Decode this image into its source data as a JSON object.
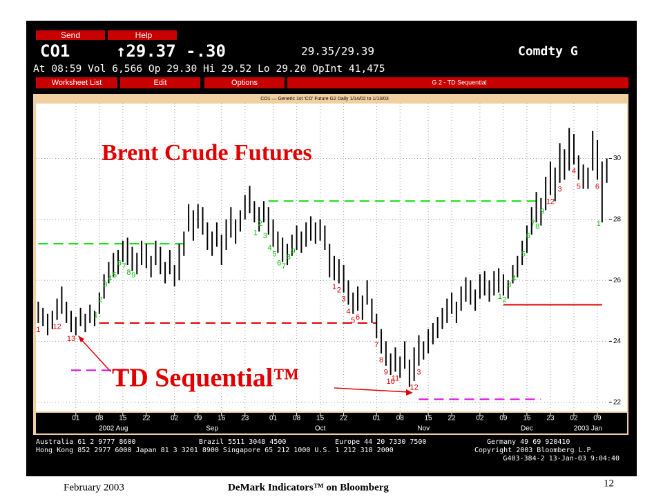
{
  "slide": {
    "title": "Brent Crude Futures",
    "annotation": "TD Sequential™",
    "date": "February 2003",
    "footer": "DeMark Indicators™ on Bloomberg",
    "page": "12"
  },
  "terminal": {
    "buttons": [
      "Send",
      "Help"
    ],
    "ticker": "CO1",
    "last": "↑29.37 -.30",
    "bid_ask": "29.35/29.39",
    "market": "Comdty G",
    "info": "At 08:59 Vol 6,566 Op 29.30 Hi 29.52 Lo 29.20 OpInt 41,475",
    "menus": [
      "Worksheet List",
      "Edit",
      "Options"
    ],
    "screen": "G 2 - TD Sequential",
    "caption": "CO1 — Generic 1st 'CO' Future G2 Daily 1/14/02 to 1/13/03",
    "contacts": [
      [
        "Australia 61 2 9777 8600",
        "Brazil 5511 3048 4500",
        "Europe 44 20 7330 7500",
        "Germany 49 69 920410"
      ],
      [
        "Hong Kong 852 2977 6000 Japan 81 3 3201 8900 Singapore 65 212 1000 U.S. 1 212 318 2000",
        "Copyright 2003 Bloomberg L.P."
      ],
      [
        "G403-384-2 13-Jan-03 9:04:40"
      ]
    ]
  },
  "chart_data": {
    "type": "ohlc",
    "color": "#000000",
    "ylim": [
      21.7,
      31.8
    ],
    "yticks": [
      22,
      24,
      26,
      28,
      30
    ],
    "xlim": [
      0,
      122
    ],
    "xticks": [
      {
        "value": 8,
        "label": "01"
      },
      {
        "value": 13,
        "label": "08"
      },
      {
        "value": 18,
        "label": "15"
      },
      {
        "value": 23,
        "label": "22"
      },
      {
        "value": 29,
        "label": "02"
      },
      {
        "value": 34,
        "label": "09"
      },
      {
        "value": 39,
        "label": "16"
      },
      {
        "value": 44,
        "label": "23"
      },
      {
        "value": 50,
        "label": "01"
      },
      {
        "value": 55,
        "label": "08"
      },
      {
        "value": 60,
        "label": "15"
      },
      {
        "value": 65,
        "label": "22"
      },
      {
        "value": 72,
        "label": "01"
      },
      {
        "value": 77,
        "label": "08"
      },
      {
        "value": 83,
        "label": "15"
      },
      {
        "value": 88,
        "label": "22"
      },
      {
        "value": 94,
        "label": "02"
      },
      {
        "value": 99,
        "label": "09"
      },
      {
        "value": 104,
        "label": "16"
      },
      {
        "value": 109,
        "label": "23"
      },
      {
        "value": 114,
        "label": "02"
      },
      {
        "value": 119,
        "label": "09"
      }
    ],
    "months": [
      {
        "value": 16,
        "label": "2002 Aug"
      },
      {
        "value": 37,
        "label": "Sep"
      },
      {
        "value": 60,
        "label": "Oct"
      },
      {
        "value": 82,
        "label": "Nov"
      },
      {
        "value": 104,
        "label": "Dec"
      },
      {
        "value": 117,
        "label": "2003 Jan"
      }
    ],
    "grid": true,
    "bars": [
      [
        25.3,
        24.6
      ],
      [
        25.1,
        24.5
      ],
      [
        24.9,
        24.2
      ],
      [
        25.0,
        24.4
      ],
      [
        25.4,
        24.7
      ],
      [
        25.8,
        24.9
      ],
      [
        25.3,
        24.6
      ],
      [
        25.0,
        24.3
      ],
      [
        24.8,
        24.2
      ],
      [
        25.1,
        24.5
      ],
      [
        24.9,
        24.3
      ],
      [
        25.2,
        24.6
      ],
      [
        25.0,
        24.5
      ],
      [
        25.6,
        24.9
      ],
      [
        26.2,
        25.4
      ],
      [
        26.6,
        25.9
      ],
      [
        26.9,
        26.1
      ],
      [
        27.0,
        26.2
      ],
      [
        27.3,
        26.6
      ],
      [
        27.4,
        26.5
      ],
      [
        27.1,
        26.3
      ],
      [
        26.9,
        26.2
      ],
      [
        27.3,
        26.5
      ],
      [
        27.2,
        26.4
      ],
      [
        26.8,
        26.1
      ],
      [
        27.3,
        26.5
      ],
      [
        27.1,
        26.2
      ],
      [
        26.6,
        25.9
      ],
      [
        27.0,
        26.2
      ],
      [
        26.5,
        25.8
      ],
      [
        27.2,
        26.0
      ],
      [
        27.6,
        26.8
      ],
      [
        28.5,
        27.6
      ],
      [
        28.3,
        27.3
      ],
      [
        28.5,
        27.7
      ],
      [
        28.4,
        27.5
      ],
      [
        27.9,
        27.0
      ],
      [
        27.6,
        26.8
      ],
      [
        27.9,
        27.1
      ],
      [
        27.5,
        26.5
      ],
      [
        28.0,
        27.0
      ],
      [
        28.4,
        27.4
      ],
      [
        28.0,
        27.2
      ],
      [
        28.3,
        27.6
      ],
      [
        28.8,
        28.0
      ],
      [
        29.1,
        28.2
      ],
      [
        28.6,
        27.9
      ],
      [
        28.4,
        27.6
      ],
      [
        28.6,
        27.9
      ],
      [
        28.4,
        27.5
      ],
      [
        28.0,
        27.1
      ],
      [
        27.6,
        26.9
      ],
      [
        27.4,
        26.6
      ],
      [
        27.2,
        26.5
      ],
      [
        27.5,
        26.8
      ],
      [
        27.8,
        27.0
      ],
      [
        27.6,
        26.9
      ],
      [
        27.9,
        27.1
      ],
      [
        28.1,
        27.3
      ],
      [
        27.9,
        27.2
      ],
      [
        28.0,
        27.3
      ],
      [
        27.8,
        27.0
      ],
      [
        27.2,
        26.1
      ],
      [
        26.8,
        26.0
      ],
      [
        26.7,
        25.9
      ],
      [
        26.5,
        25.6
      ],
      [
        26.0,
        25.2
      ],
      [
        25.6,
        24.9
      ],
      [
        25.8,
        25.0
      ],
      [
        25.5,
        24.7
      ],
      [
        26.0,
        25.2
      ],
      [
        25.4,
        24.6
      ],
      [
        24.9,
        24.1
      ],
      [
        24.4,
        23.6
      ],
      [
        24.0,
        23.2
      ],
      [
        23.6,
        22.9
      ],
      [
        23.8,
        23.0
      ],
      [
        23.5,
        22.8
      ],
      [
        24.0,
        23.1
      ],
      [
        23.4,
        22.5
      ],
      [
        23.8,
        22.7
      ],
      [
        24.2,
        23.2
      ],
      [
        24.0,
        23.4
      ],
      [
        24.4,
        23.6
      ],
      [
        24.6,
        23.9
      ],
      [
        24.8,
        24.1
      ],
      [
        25.1,
        24.4
      ],
      [
        25.4,
        24.6
      ],
      [
        25.6,
        24.9
      ],
      [
        25.3,
        24.6
      ],
      [
        25.8,
        25.0
      ],
      [
        26.1,
        25.3
      ],
      [
        26.0,
        25.2
      ],
      [
        25.7,
        25.0
      ],
      [
        26.2,
        25.4
      ],
      [
        26.3,
        25.5
      ],
      [
        26.0,
        25.3
      ],
      [
        26.3,
        25.5
      ],
      [
        26.4,
        25.6
      ],
      [
        26.2,
        25.5
      ],
      [
        26.0,
        25.4
      ],
      [
        26.5,
        25.9
      ],
      [
        26.8,
        26.1
      ],
      [
        27.3,
        26.5
      ],
      [
        27.8,
        26.9
      ],
      [
        28.4,
        27.5
      ],
      [
        28.9,
        27.9
      ],
      [
        28.7,
        27.8
      ],
      [
        29.4,
        28.3
      ],
      [
        29.9,
        28.8
      ],
      [
        29.7,
        28.6
      ],
      [
        30.5,
        29.2
      ],
      [
        30.3,
        29.3
      ],
      [
        31.0,
        29.6
      ],
      [
        30.8,
        29.8
      ],
      [
        30.1,
        29.3
      ],
      [
        29.8,
        29.0
      ],
      [
        29.7,
        29.0
      ],
      [
        30.9,
        29.6
      ],
      [
        30.6,
        29.3
      ],
      [
        29.9,
        27.9
      ],
      [
        30.0,
        29.2
      ]
    ],
    "counts": [
      {
        "bar": 0,
        "label": "1",
        "color": "#e00000"
      },
      {
        "bar": 4,
        "label": "12",
        "color": "#e00000"
      },
      {
        "bar": 7,
        "label": "13",
        "color": "#e00000"
      },
      {
        "bar": 13,
        "label": "1",
        "color": "#00c000"
      },
      {
        "bar": 14,
        "label": "2",
        "color": "#00c000"
      },
      {
        "bar": 15,
        "label": "3",
        "color": "#00c000"
      },
      {
        "bar": 16,
        "label": "4",
        "color": "#00c000"
      },
      {
        "bar": 17,
        "label": "5",
        "color": "#00c000"
      },
      {
        "bar": 18,
        "label": "6",
        "color": "#00c000"
      },
      {
        "bar": 19,
        "label": "7",
        "color": "#00c000"
      },
      {
        "bar": 20,
        "label": "8",
        "color": "#00c000"
      },
      {
        "bar": 21,
        "label": "9",
        "color": "#00c000"
      },
      {
        "bar": 47,
        "label": "1",
        "color": "#00c000"
      },
      {
        "bar": 48,
        "label": "2",
        "color": "#00c000"
      },
      {
        "bar": 49,
        "label": "3",
        "color": "#00c000"
      },
      {
        "bar": 50,
        "label": "4",
        "color": "#00c000"
      },
      {
        "bar": 51,
        "label": "5",
        "color": "#00c000"
      },
      {
        "bar": 52,
        "label": "6",
        "color": "#00c000"
      },
      {
        "bar": 53,
        "label": "7",
        "color": "#00c000"
      },
      {
        "bar": 54,
        "label": "8",
        "color": "#00c000"
      },
      {
        "bar": 55,
        "label": "9",
        "color": "#00c000"
      },
      {
        "bar": 63,
        "label": "1",
        "color": "#e00000"
      },
      {
        "bar": 64,
        "label": "2",
        "color": "#e00000"
      },
      {
        "bar": 65,
        "label": "3",
        "color": "#e00000"
      },
      {
        "bar": 66,
        "label": "4",
        "color": "#e00000"
      },
      {
        "bar": 67,
        "label": "5",
        "color": "#e00000"
      },
      {
        "bar": 68,
        "label": "6",
        "color": "#e00000"
      },
      {
        "bar": 72,
        "label": "7",
        "color": "#e00000"
      },
      {
        "bar": 73,
        "label": "8",
        "color": "#e00000"
      },
      {
        "bar": 74,
        "label": "9",
        "color": "#e00000"
      },
      {
        "bar": 75,
        "label": "10",
        "color": "#e00000"
      },
      {
        "bar": 76,
        "label": "11",
        "color": "#e00000"
      },
      {
        "bar": 80,
        "label": "12",
        "color": "#e00000"
      },
      {
        "bar": 81,
        "label": "3",
        "color": "#e00000"
      },
      {
        "bar": 99,
        "label": "1",
        "color": "#00c000"
      },
      {
        "bar": 100,
        "label": "2",
        "color": "#00c000"
      },
      {
        "bar": 101,
        "label": "3",
        "color": "#00c000"
      },
      {
        "bar": 102,
        "label": "4",
        "color": "#00c000"
      },
      {
        "bar": 104,
        "label": "5",
        "color": "#00c000"
      },
      {
        "bar": 105,
        "label": "6",
        "color": "#00c000"
      },
      {
        "bar": 106,
        "label": "7",
        "color": "#00c000"
      },
      {
        "bar": 107,
        "label": "8",
        "color": "#00c000"
      },
      {
        "bar": 108,
        "label": "9",
        "color": "#00c000"
      },
      {
        "bar": 109,
        "label": "12",
        "color": "#e00000"
      },
      {
        "bar": 111,
        "label": "3",
        "color": "#e00000"
      },
      {
        "bar": 114,
        "label": "4",
        "color": "#e00000"
      },
      {
        "bar": 115,
        "label": "5",
        "color": "#e00000"
      },
      {
        "bar": 119,
        "label": "6",
        "color": "#e00000"
      },
      {
        "bar": 120,
        "label": "1",
        "color": "#00c000"
      }
    ],
    "levels": [
      {
        "value": 27.2,
        "from": 0,
        "to": 31,
        "color": "#00e000",
        "dashed": true
      },
      {
        "value": 28.6,
        "from": 49,
        "to": 106,
        "color": "#00e000",
        "dashed": true
      },
      {
        "value": 24.6,
        "from": 13,
        "to": 72,
        "color": "#e00000",
        "dashed": true
      },
      {
        "value": 25.2,
        "from": 99,
        "to": 120,
        "color": "#e00000",
        "dashed": false
      },
      {
        "value": 23.05,
        "from": 7,
        "to": 20,
        "color": "#e000e0",
        "dashed": true
      },
      {
        "value": 22.1,
        "from": 81,
        "to": 107,
        "color": "#e000e0",
        "dashed": true
      }
    ]
  }
}
